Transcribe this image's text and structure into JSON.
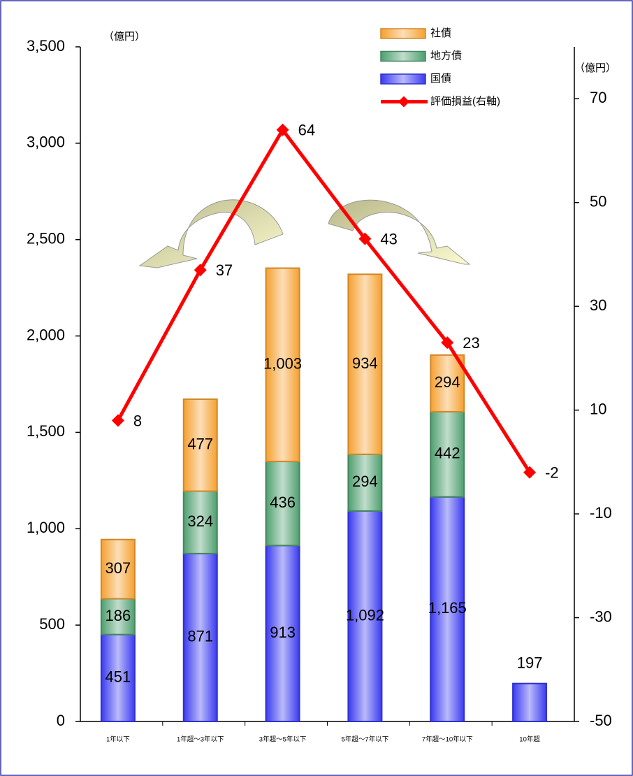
{
  "chart_data": {
    "type": "bar",
    "y_unit_label": "（億円）",
    "y2_unit_label": "（億円）",
    "categories": [
      "1年以下",
      "1年超～3年以下",
      "3年超～5年以下",
      "5年超～7年以下",
      "7年超～10年以下",
      "10年超"
    ],
    "series": [
      {
        "name": "国債",
        "color": "#3a3af0",
        "values": [
          451,
          871,
          913,
          1092,
          1165,
          197
        ],
        "value_labels": [
          "451",
          "871",
          "913",
          "1,092",
          "1,165",
          "197"
        ]
      },
      {
        "name": "地方債",
        "color": "#4f9f6f",
        "values": [
          186,
          324,
          436,
          294,
          442,
          null
        ],
        "value_labels": [
          "186",
          "324",
          "436",
          "294",
          "442",
          null
        ]
      },
      {
        "name": "社債",
        "color": "#f5a030",
        "values": [
          307,
          477,
          1003,
          934,
          294,
          null
        ],
        "value_labels": [
          "307",
          "477",
          "1,003",
          "934",
          "294",
          null
        ]
      },
      {
        "name": "評価損益(右軸)",
        "type": "line",
        "axis": "y2",
        "color": "#ff0000",
        "values": [
          8,
          37,
          64,
          43,
          23,
          -2
        ]
      }
    ],
    "ylim": [
      0,
      3500
    ],
    "yticks": [
      0,
      500,
      {
        "value": 1000,
        "label": "1,000"
      },
      {
        "value": 1500,
        "label": "1,500"
      },
      {
        "value": 2000,
        "label": "2,000"
      },
      {
        "value": 2500,
        "label": "2,500"
      },
      {
        "value": 3000,
        "label": "3,000"
      },
      {
        "value": 3500,
        "label": "3,500"
      }
    ],
    "y2lim": [
      -50,
      80
    ],
    "y2ticks": [
      -50,
      -30,
      -10,
      10,
      30,
      50,
      70
    ]
  }
}
